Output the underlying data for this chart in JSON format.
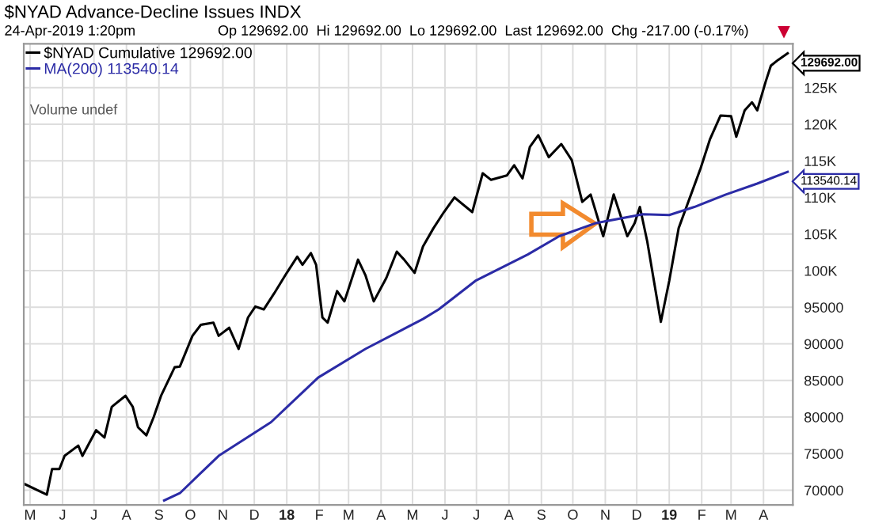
{
  "chart_data": {
    "type": "line",
    "title": "$NYAD Advance-Decline Issues INDX",
    "subtitle": "24-Apr-2019 1:20pm",
    "annotations": [
      "Op 129692.00  Hi 129692.00  Lo 129692.00  Last 129692.00  Chg -217.00 (-0.17%)",
      "Volume undef",
      {
        "text": "129692.00",
        "x": "2019-04-24",
        "y": 129692
      },
      {
        "text": "113540.14",
        "x": "2019-04-24",
        "y": 113540.14
      }
    ],
    "series": [
      {
        "name": "$NYAD Cumulative 129692.00",
        "color": "#000000",
        "x": [
          "2017-04-25",
          "2017-05-17",
          "2017-05-22",
          "2017-05-29",
          "2017-06-03",
          "2017-06-16",
          "2017-06-20",
          "2017-07-03",
          "2017-07-11",
          "2017-07-18",
          "2017-07-31",
          "2017-08-07",
          "2017-08-12",
          "2017-08-20",
          "2017-08-27",
          "2017-09-03",
          "2017-09-16",
          "2017-09-21",
          "2017-10-03",
          "2017-10-11",
          "2017-10-23",
          "2017-10-28",
          "2017-11-07",
          "2017-11-16",
          "2017-11-25",
          "2017-12-02",
          "2017-12-10",
          "2017-12-20",
          "2018-01-01",
          "2018-01-11",
          "2018-01-16",
          "2018-01-24",
          "2018-01-29",
          "2018-02-04",
          "2018-02-09",
          "2018-02-18",
          "2018-02-25",
          "2018-03-10",
          "2018-03-17",
          "2018-03-25",
          "2018-04-06",
          "2018-04-16",
          "2018-04-23",
          "2018-05-03",
          "2018-05-11",
          "2018-05-21",
          "2018-05-31",
          "2018-06-10",
          "2018-06-27",
          "2018-07-07",
          "2018-07-15",
          "2018-07-30",
          "2018-08-06",
          "2018-08-14",
          "2018-08-21",
          "2018-08-29",
          "2018-09-08",
          "2018-09-20",
          "2018-09-30",
          "2018-10-10",
          "2018-10-18",
          "2018-10-30",
          "2018-11-09",
          "2018-11-22",
          "2018-11-29",
          "2018-12-04",
          "2018-12-11",
          "2018-12-24",
          "2019-01-01",
          "2019-01-10",
          "2019-01-21",
          "2019-01-31",
          "2019-02-09",
          "2019-02-19",
          "2019-03-01",
          "2019-03-06",
          "2019-03-14",
          "2019-03-21",
          "2019-03-26",
          "2019-04-03",
          "2019-04-08",
          "2019-04-15",
          "2019-04-24"
        ],
        "values": [
          70900,
          69400,
          72900,
          72900,
          74700,
          76100,
          74700,
          78200,
          77200,
          81400,
          82900,
          81400,
          78600,
          77500,
          80000,
          82900,
          86800,
          86900,
          91100,
          92600,
          92900,
          91100,
          92200,
          89300,
          93600,
          95100,
          94700,
          96900,
          99700,
          101900,
          100800,
          102400,
          100800,
          93600,
          92900,
          97200,
          95800,
          101500,
          99400,
          95800,
          99000,
          102600,
          101500,
          99700,
          103300,
          105800,
          108000,
          110000,
          108000,
          113300,
          112400,
          113000,
          114400,
          112600,
          116900,
          118500,
          115500,
          117300,
          115100,
          109400,
          110400,
          104700,
          110400,
          104700,
          106500,
          108700,
          104000,
          93000,
          98600,
          105800,
          110100,
          114000,
          118000,
          121200,
          121100,
          118300,
          121900,
          123000,
          121900,
          125800,
          128000,
          128800,
          129700
        ]
      },
      {
        "name": "MA(200) 113540.14",
        "color": "#2b2ba6",
        "x": [
          "2017-09-06",
          "2017-09-21",
          "2017-10-28",
          "2017-12-17",
          "2018-01-31",
          "2018-03-17",
          "2018-05-11",
          "2018-05-26",
          "2018-06-30",
          "2018-08-19",
          "2018-09-18",
          "2018-10-23",
          "2018-12-07",
          "2019-01-01",
          "2019-01-25",
          "2019-02-24",
          "2019-03-26",
          "2019-04-24"
        ],
        "values": [
          68600,
          69600,
          74700,
          79300,
          85400,
          89300,
          93400,
          94700,
          98600,
          102200,
          104700,
          106500,
          107700,
          107600,
          108700,
          110400,
          111900,
          113500
        ]
      }
    ],
    "xlim": [
      "2017-04-25",
      "2019-04-29"
    ],
    "xticks": [
      {
        "value": "2017-05-01",
        "label": "M"
      },
      {
        "value": "2017-06-01",
        "label": "J"
      },
      {
        "value": "2017-07-01",
        "label": "J"
      },
      {
        "value": "2017-08-01",
        "label": "A"
      },
      {
        "value": "2017-09-01",
        "label": "S"
      },
      {
        "value": "2017-10-01",
        "label": "O"
      },
      {
        "value": "2017-11-01",
        "label": "N"
      },
      {
        "value": "2017-12-01",
        "label": "D"
      },
      {
        "value": "2018-01-01",
        "label": "18"
      },
      {
        "value": "2018-02-01",
        "label": "F"
      },
      {
        "value": "2018-03-01",
        "label": "M"
      },
      {
        "value": "2018-04-01",
        "label": "A"
      },
      {
        "value": "2018-05-01",
        "label": "M"
      },
      {
        "value": "2018-06-01",
        "label": "J"
      },
      {
        "value": "2018-07-01",
        "label": "J"
      },
      {
        "value": "2018-08-01",
        "label": "A"
      },
      {
        "value": "2018-09-01",
        "label": "S"
      },
      {
        "value": "2018-10-01",
        "label": "O"
      },
      {
        "value": "2018-11-01",
        "label": "N"
      },
      {
        "value": "2018-12-01",
        "label": "D"
      },
      {
        "value": "2019-01-01",
        "label": "19"
      },
      {
        "value": "2019-02-01",
        "label": "F"
      },
      {
        "value": "2019-03-01",
        "label": "M"
      },
      {
        "value": "2019-04-01",
        "label": "A"
      }
    ],
    "ylim": [
      68000,
      131000
    ],
    "yticks": [
      70000,
      75000,
      80000,
      85000,
      90000,
      95000,
      {
        "value": 100000,
        "label": "100K"
      },
      {
        "value": 105000,
        "label": "105K"
      },
      {
        "value": 110000,
        "label": "110K"
      },
      {
        "value": 115000,
        "label": "115K"
      },
      {
        "value": 120000,
        "label": "120K"
      },
      {
        "value": 125000,
        "label": "125K"
      }
    ],
    "grid": true,
    "legend": "top left",
    "line_style": "solid"
  }
}
